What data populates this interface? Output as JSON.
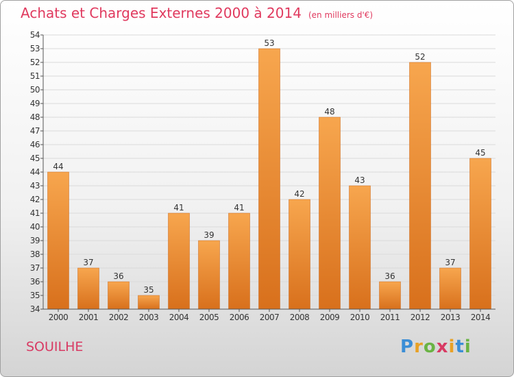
{
  "header": {
    "title": "Achats et Charges Externes 2000 à 2014",
    "unit": "(en milliers d'€)"
  },
  "footer": {
    "commune": "SOUILHE",
    "brand_letters": [
      "P",
      "r",
      "o",
      "x",
      "i",
      "t",
      "i"
    ],
    "brand_colors": [
      "#3b8ed6",
      "#e8a126",
      "#6ab344",
      "#d83a63",
      "#e8a126",
      "#3b8ed6",
      "#6ab344"
    ]
  },
  "colors": {
    "title": "#e0395e",
    "bar_light": "#f7a64e",
    "bar_dark": "#d8701c",
    "grid": "#dadada",
    "axis_text": "#333333"
  },
  "chart_data": {
    "type": "bar",
    "categories": [
      "2000",
      "2001",
      "2002",
      "2003",
      "2004",
      "2005",
      "2006",
      "2007",
      "2008",
      "2009",
      "2010",
      "2011",
      "2012",
      "2013",
      "2014"
    ],
    "values": [
      44,
      37,
      36,
      35,
      41,
      39,
      41,
      53,
      42,
      48,
      43,
      36,
      52,
      37,
      45
    ],
    "ylim": [
      34,
      54
    ],
    "yticks": [
      34,
      35,
      36,
      37,
      38,
      39,
      40,
      41,
      42,
      43,
      44,
      45,
      46,
      47,
      48,
      49,
      50,
      51,
      52,
      53,
      54
    ],
    "grid": true,
    "data_labels": true,
    "xlabel": "",
    "ylabel": ""
  }
}
